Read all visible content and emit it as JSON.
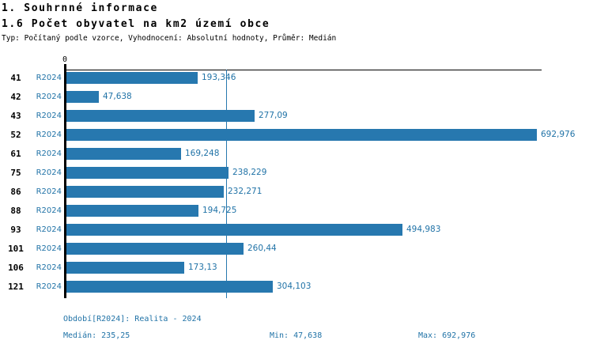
{
  "header": {
    "title1": "1. Souhrnné informace",
    "title2": "1.6 Počet obyvatel na km2 území obce",
    "subtitle": "Typ: Počítaný podle vzorce, Vyhodnocení: Absolutní hodnoty, Průměr: Medián"
  },
  "chart_data": {
    "type": "bar",
    "orientation": "horizontal",
    "categories": [
      "41",
      "42",
      "43",
      "52",
      "61",
      "75",
      "86",
      "88",
      "93",
      "101",
      "106",
      "121"
    ],
    "series_label": "R2024",
    "values": [
      193.346,
      47.638,
      277.09,
      692.976,
      169.248,
      238.229,
      232.271,
      194.725,
      494.983,
      260.44,
      173.13,
      304.103
    ],
    "value_labels": [
      "193,346",
      "47,638",
      "277,09",
      "692,976",
      "169,248",
      "238,229",
      "232,271",
      "194,725",
      "494,983",
      "260,44",
      "173,13",
      "304,103"
    ],
    "xlim": [
      0,
      700
    ],
    "x_tick_labels": [
      "0"
    ],
    "grid": false,
    "legend_position": "none",
    "median_line_value": 235.25,
    "bar_color": "#2778af",
    "text_blue": "#2173a7",
    "axis_color": "#000000"
  },
  "footer": {
    "period": "Období[R2024]: Realita - 2024",
    "median": "Medián: 235,25",
    "min": "Min: 47,638",
    "max": "Max: 692,976"
  }
}
